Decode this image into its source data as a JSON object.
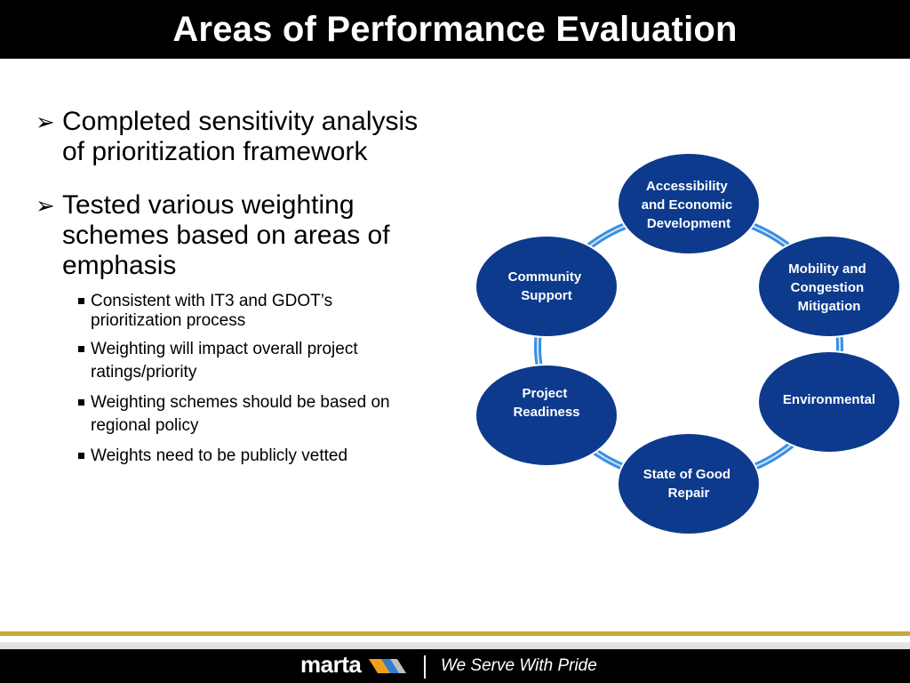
{
  "slide": {
    "title": "Areas of Performance Evaluation"
  },
  "bullets": [
    {
      "text": "Completed sensitivity analysis of prioritization framework",
      "lines": [
        "Completed sensitivity analysis",
        "of prioritization framework"
      ]
    },
    {
      "text": "Tested various weighting schemes based on areas of emphasis",
      "lines": [
        "Tested various weighting",
        "schemes based on areas of",
        "emphasis"
      ],
      "sub": [
        {
          "lines": [
            "Consistent with IT3 and GDOT’s",
            "prioritization process"
          ]
        },
        {
          "lines": [
            "Weighting will impact overall project",
            "ratings/priority"
          ]
        },
        {
          "lines": [
            "Weighting schemes should be based on",
            "regional policy"
          ]
        },
        {
          "lines": [
            "Weights need to be publicly vetted"
          ]
        }
      ]
    }
  ],
  "diagram": {
    "nodes": [
      {
        "id": "accessibility",
        "lines": [
          "Accessibility",
          "and Economic",
          "Development"
        ]
      },
      {
        "id": "mobility",
        "lines": [
          "Mobility and",
          "Congestion",
          "Mitigation"
        ]
      },
      {
        "id": "environmental",
        "lines": [
          "Environmental"
        ]
      },
      {
        "id": "state-of-good-repair",
        "lines": [
          "State of Good",
          "Repair"
        ]
      },
      {
        "id": "project-readiness",
        "lines": [
          "Project",
          "Readiness"
        ]
      },
      {
        "id": "community-support",
        "lines": [
          "Community",
          "Support"
        ]
      }
    ],
    "node_color": "#0d3a8c",
    "ring_color": "#3a8fe0"
  },
  "footer": {
    "logo": "marta",
    "tagline": "We Serve With Pride",
    "accent_color": "#c9a63c"
  }
}
